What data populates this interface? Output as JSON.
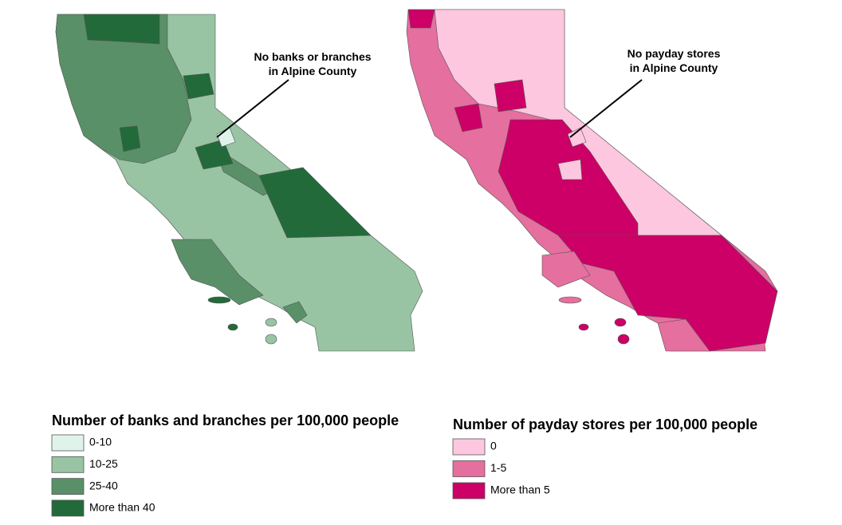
{
  "maps": [
    {
      "annotation": [
        "No banks or branches",
        "in Alpine County"
      ],
      "legend": {
        "title": "Number of banks and branches per 100,000 people",
        "items": [
          {
            "label": "0-10",
            "color": "#e0f3ea"
          },
          {
            "label": "10-25",
            "color": "#98c4a3"
          },
          {
            "label": "25-40",
            "color": "#5a9068"
          },
          {
            "label": "More than 40",
            "color": "#236a3a"
          }
        ]
      }
    },
    {
      "annotation": [
        "No payday stores",
        "in Alpine County"
      ],
      "legend": {
        "title": "Number of payday stores per 100,000 people",
        "items": [
          {
            "label": "0",
            "color": "#fcc7df"
          },
          {
            "label": "1-5",
            "color": "#e56f9f"
          },
          {
            "label": "More than 5",
            "color": "#cc0066"
          }
        ]
      }
    }
  ]
}
